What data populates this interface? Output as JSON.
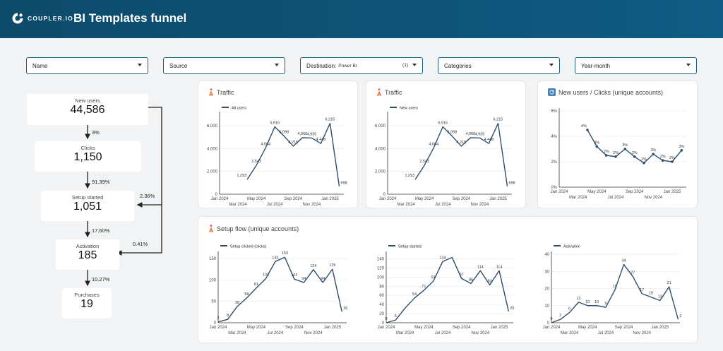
{
  "header": {
    "logo_text": "COUPLER.IO",
    "title": "BI Templates funnel"
  },
  "filters": [
    {
      "label": "Name"
    },
    {
      "label": "Source"
    },
    {
      "label": "Destination:",
      "value": "Power BI",
      "count": "(1)"
    },
    {
      "label": "Categories"
    },
    {
      "label": "Year-month"
    }
  ],
  "funnel": {
    "steps": [
      {
        "label": "New users",
        "value": "44,586"
      },
      {
        "label": "Clicks",
        "value": "1,150"
      },
      {
        "label": "Setup started",
        "value": "1,051"
      },
      {
        "label": "Activation",
        "value": "185"
      },
      {
        "label": "Purchases",
        "value": "19"
      }
    ],
    "rates": [
      "3%",
      "91.39%",
      "17.60%",
      "10.27%"
    ],
    "skip_rates": [
      "2.36%",
      "0.41%"
    ]
  },
  "cards": {
    "traffic1_title": "Traffic",
    "traffic2_title": "Traffic",
    "ratio_title": "New users / Clicks (unique accounts)",
    "setup_title": "Setup flow (unique accounts)"
  },
  "chart_data": [
    {
      "type": "line",
      "title": "Traffic",
      "series": [
        {
          "name": "All users",
          "values": [
            1293,
            2543,
            4064,
            5916,
            5098,
            4215,
            4960,
            4935,
            4448,
            6215,
            698
          ]
        }
      ],
      "x": [
        "2024-04",
        "2024-05",
        "2024-06",
        "2024-07",
        "2024-08",
        "2024-09",
        "2024-10",
        "2024-11",
        "2024-12",
        "2025-01",
        "2025-02"
      ],
      "data_labels": [
        "1,293",
        "2,543",
        "4,064",
        "5,916",
        "5,098",
        "4,215",
        "4,960",
        "4,935",
        "4,448",
        "6,215",
        "698"
      ],
      "x_ticks_top": [
        "Jan 2024",
        "May 2024",
        "Sep 2024",
        "Jan 2025"
      ],
      "x_ticks_bottom": [
        "Mar 2024",
        "Jul 2024",
        "Nov 2024"
      ],
      "y_ticks": [
        "0",
        "2,000",
        "4,000",
        "6,000"
      ],
      "ylim": [
        0,
        7000
      ]
    },
    {
      "type": "line",
      "title": "Traffic",
      "series": [
        {
          "name": "New users",
          "values": [
            1293,
            2543,
            4064,
            5916,
            5098,
            4215,
            4960,
            4935,
            4448,
            6215,
            698
          ]
        }
      ],
      "x": [
        "2024-04",
        "2024-05",
        "2024-06",
        "2024-07",
        "2024-08",
        "2024-09",
        "2024-10",
        "2024-11",
        "2024-12",
        "2025-01",
        "2025-02"
      ],
      "data_labels": [
        "1,293",
        "2,543",
        "4,064",
        "5,916",
        "5,098",
        "4,215",
        "4,960",
        "4,935",
        "4,448",
        "6,215",
        "698"
      ],
      "x_ticks_top": [
        "Jan 2024",
        "May 2024",
        "Sep 2024",
        "Jan 2025"
      ],
      "x_ticks_bottom": [
        "Mar 2024",
        "Jul 2024",
        "Nov 2024"
      ],
      "y_ticks": [
        "0",
        "2,000",
        "4,000",
        "6,000"
      ],
      "ylim": [
        0,
        7000
      ]
    },
    {
      "type": "line",
      "title": "New users / Clicks (unique accounts)",
      "series": [
        {
          "name": "",
          "values": [
            4.5,
            3.2,
            2.5,
            2.4,
            3.0,
            2.4,
            1.9,
            2.6,
            2.1,
            2.0,
            2.9
          ]
        }
      ],
      "x": [
        "2024-04",
        "2024-05",
        "2024-06",
        "2024-07",
        "2024-08",
        "2024-09",
        "2024-10",
        "2024-11",
        "2024-12",
        "2025-01",
        "2025-02"
      ],
      "data_labels": [
        "4%",
        "3%",
        "2%",
        "2%",
        "3%",
        "2%",
        "2%",
        "3%",
        "2%",
        "2%",
        "3%"
      ],
      "x_ticks_top": [
        "Jan 2024",
        "May 2024",
        "Sep 2024",
        "Jan 2025"
      ],
      "x_ticks_bottom": [
        "Mar 2024",
        "Jul 2024",
        "Nov 2024"
      ],
      "y_ticks": [
        "0%",
        "2%",
        "4%",
        "6%"
      ],
      "ylim": [
        0,
        6
      ]
    },
    {
      "type": "line",
      "title": "Setup flow (unique accounts)",
      "series": [
        {
          "name": "Setup clicked (clicks)",
          "values": [
            2,
            8,
            38,
            58,
            81,
            103,
            143,
            153,
            102,
            94,
            124,
            94,
            125,
            26
          ]
        }
      ],
      "x": [
        "2024-01",
        "2024-02",
        "2024-03",
        "2024-04",
        "2024-05",
        "2024-06",
        "2024-07",
        "2024-08",
        "2024-09",
        "2024-10",
        "2024-11",
        "2024-12",
        "2025-01",
        "2025-02"
      ],
      "data_labels": [
        "2",
        "8",
        "38",
        "58",
        "81",
        "103",
        "143",
        "153",
        "102",
        "94",
        "124",
        "94",
        "125",
        "26"
      ],
      "x_ticks_top": [
        "Jan 2024",
        "May 2024",
        "Sep 2024",
        "Jan 2025"
      ],
      "x_ticks_bottom": [
        "Mar 2024",
        "Jul 2024",
        "Nov 2024"
      ],
      "y_ticks": [
        "0",
        "50",
        "100",
        "150"
      ],
      "ylim": [
        0,
        160
      ]
    },
    {
      "type": "line",
      "series": [
        {
          "name": "Setup started",
          "values": [
            0,
            6,
            32,
            54,
            71,
            91,
            134,
            143,
            97,
            86,
            114,
            83,
            114,
            25
          ]
        }
      ],
      "x": [
        "2024-01",
        "2024-02",
        "2024-03",
        "2024-04",
        "2024-05",
        "2024-06",
        "2024-07",
        "2024-08",
        "2024-09",
        "2024-10",
        "2024-11",
        "2024-12",
        "2025-01",
        "2025-02"
      ],
      "data_labels": [
        "0",
        "6",
        "",
        "54",
        "71",
        "91",
        "134",
        "",
        "97",
        "86",
        "114",
        "83",
        "114",
        "25"
      ],
      "x_ticks_top": [
        "Jan 2024",
        "May 2024",
        "Sep 2024",
        "Jan 2025"
      ],
      "x_ticks_bottom": [
        "Mar 2024",
        "Jul 2024",
        "Nov 2024"
      ],
      "y_ticks": [
        "0",
        "20",
        "40",
        "60",
        "80",
        "100",
        "120",
        "140"
      ],
      "ylim": [
        0,
        150
      ]
    },
    {
      "type": "line",
      "series": [
        {
          "name": "Activation",
          "values": [
            0,
            2,
            6,
            12,
            10,
            10,
            9,
            19,
            34,
            27,
            17,
            15,
            13,
            21,
            2
          ]
        }
      ],
      "x": [
        "2024-01",
        "2024-02",
        "2024-03",
        "2024-04",
        "2024-05",
        "2024-06",
        "2024-07",
        "2024-08",
        "2024-09",
        "2024-10",
        "2024-11",
        "2024-12",
        "2025-01",
        "2025-02",
        "2025-03"
      ],
      "data_labels": [
        "0",
        "2",
        "6",
        "12",
        "10",
        "10",
        "9",
        "19",
        "34",
        "27",
        "17",
        "15",
        "13",
        "21",
        "2"
      ],
      "x_ticks_top": [
        "Jan 2024",
        "May 2024",
        "Sep 2024",
        "Jan 2025"
      ],
      "x_ticks_bottom": [
        "Mar 2024",
        "Jul 2024",
        "Nov 2024"
      ],
      "y_ticks": [
        "0",
        "10",
        "20",
        "30",
        "40"
      ],
      "ylim": [
        0,
        40
      ]
    }
  ],
  "colors": {
    "header": "#0e5479",
    "line": "#2d4e6e",
    "accent_border": "#1d5f80"
  }
}
